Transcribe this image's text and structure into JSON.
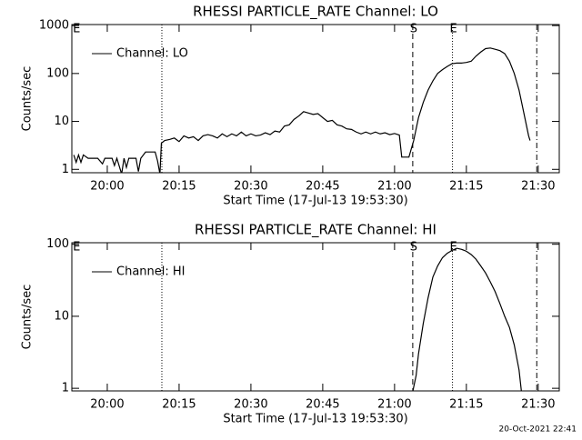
{
  "chart_data": [
    {
      "type": "line",
      "title": "RHESSI PARTICLE_RATE Channel: LO",
      "xlabel": "Start Time (17-Jul-13 19:53:30)",
      "ylabel": "Counts/sec",
      "ylog": true,
      "ylim": [
        0.85,
        1050
      ],
      "yticks": [
        1,
        10,
        100,
        1000
      ],
      "xlim": [
        1192.6,
        1294.4
      ],
      "xticks": [
        {
          "value": 1200,
          "label": "20:00"
        },
        {
          "value": 1215,
          "label": "20:15"
        },
        {
          "value": 1230,
          "label": "20:30"
        },
        {
          "value": 1245,
          "label": "20:45"
        },
        {
          "value": 1260,
          "label": "21:00"
        },
        {
          "value": 1275,
          "label": "21:15"
        },
        {
          "value": 1290,
          "label": "21:30"
        }
      ],
      "vlines": [
        {
          "x": 1193.4,
          "label": "E"
        },
        {
          "x": 1211.4,
          "style": "dotted"
        },
        {
          "x": 1263.8,
          "style": "dashed",
          "label": "S"
        },
        {
          "x": 1272.1,
          "style": "dotted",
          "label": "E"
        },
        {
          "x": 1289.7,
          "style": "dashdot"
        }
      ],
      "series": [
        {
          "name": "Channel: LO",
          "color": "#000000",
          "x": [
            1193,
            1193.5,
            1194,
            1194.5,
            1195,
            1196,
            1197,
            1198,
            1199,
            1199.5,
            1200,
            1201,
            1201.5,
            1202,
            1203,
            1203.5,
            1204,
            1204.5,
            1205,
            1206,
            1206.5,
            1207,
            1208,
            1209,
            1210,
            1210.5,
            1211,
            1211.3,
            1212,
            1213,
            1214,
            1215,
            1216,
            1217,
            1218,
            1219,
            1220,
            1221,
            1222,
            1223,
            1224,
            1225,
            1226,
            1227,
            1228,
            1229,
            1230,
            1231,
            1232,
            1233,
            1234,
            1235,
            1236,
            1237,
            1238,
            1239,
            1240,
            1241,
            1242,
            1243,
            1244,
            1245,
            1246,
            1247,
            1248,
            1249,
            1250,
            1251,
            1252,
            1253,
            1254,
            1255,
            1256,
            1257,
            1258,
            1259,
            1260,
            1261,
            1261.5,
            1263,
            1264,
            1265,
            1266,
            1267,
            1268,
            1269,
            1270,
            1271,
            1272,
            1273,
            1274,
            1275,
            1276,
            1277,
            1278,
            1279,
            1280,
            1281,
            1282,
            1283,
            1284,
            1285,
            1286,
            1287,
            1288,
            1288.3
          ],
          "values": [
            2,
            1.4,
            2,
            1.4,
            2,
            1.7,
            1.7,
            1.7,
            1.3,
            1.7,
            1.7,
            1.7,
            1.2,
            1.7,
            0.8,
            1.7,
            1.1,
            1.7,
            1.7,
            1.7,
            0.9,
            1.7,
            2.3,
            2.3,
            2.3,
            1.5,
            0.8,
            3.5,
            4,
            4.2,
            4.5,
            3.8,
            5,
            4.5,
            4.8,
            4,
            5,
            5.3,
            5,
            4.5,
            5.5,
            4.8,
            5.5,
            5,
            6,
            5,
            5.5,
            5,
            5.2,
            5.8,
            5.3,
            6.3,
            6,
            8,
            8.5,
            11,
            13,
            16,
            15,
            14,
            14.5,
            12,
            10,
            10.5,
            8.5,
            8,
            7,
            6.8,
            6,
            5.5,
            6,
            5.5,
            6,
            5.5,
            5.8,
            5.3,
            5.6,
            5.2,
            1.8,
            1.8,
            4,
            12,
            25,
            45,
            70,
            100,
            120,
            140,
            160,
            165,
            165,
            170,
            180,
            230,
            280,
            330,
            340,
            320,
            300,
            260,
            180,
            100,
            45,
            15,
            5,
            4
          ]
        }
      ]
    },
    {
      "type": "line",
      "title": "RHESSI PARTICLE_RATE Channel: HI",
      "xlabel": "Start Time (17-Jul-13 19:53:30)",
      "ylabel": "Counts/sec",
      "ylog": true,
      "ylim": [
        0.92,
        105
      ],
      "yticks": [
        1,
        10,
        100
      ],
      "xlim": [
        1192.6,
        1294.4
      ],
      "xticks": [
        {
          "value": 1200,
          "label": "20:00"
        },
        {
          "value": 1215,
          "label": "20:15"
        },
        {
          "value": 1230,
          "label": "20:30"
        },
        {
          "value": 1245,
          "label": "20:45"
        },
        {
          "value": 1260,
          "label": "21:00"
        },
        {
          "value": 1275,
          "label": "21:15"
        },
        {
          "value": 1290,
          "label": "21:30"
        }
      ],
      "vlines": [
        {
          "x": 1193.4,
          "label": "E"
        },
        {
          "x": 1211.4,
          "style": "dotted"
        },
        {
          "x": 1263.8,
          "style": "dashed",
          "label": "S"
        },
        {
          "x": 1272.1,
          "style": "dotted",
          "label": "E"
        },
        {
          "x": 1289.7,
          "style": "dashdot"
        }
      ],
      "series": [
        {
          "name": "Channel: HI",
          "color": "#000000",
          "x": [
            1263.8,
            1264.5,
            1265,
            1266,
            1267,
            1268,
            1269,
            1270,
            1271,
            1272,
            1273,
            1274,
            1275,
            1276,
            1277,
            1278,
            1279,
            1280,
            1281,
            1282,
            1283,
            1284,
            1285,
            1286,
            1286.5
          ],
          "values": [
            0.9,
            1.5,
            3,
            8,
            18,
            35,
            50,
            65,
            75,
            82,
            88,
            85,
            80,
            72,
            62,
            50,
            40,
            30,
            22,
            15,
            10,
            7,
            4,
            1.8,
            0.9
          ]
        }
      ]
    }
  ],
  "footer": "20-Oct-2021 22:41"
}
